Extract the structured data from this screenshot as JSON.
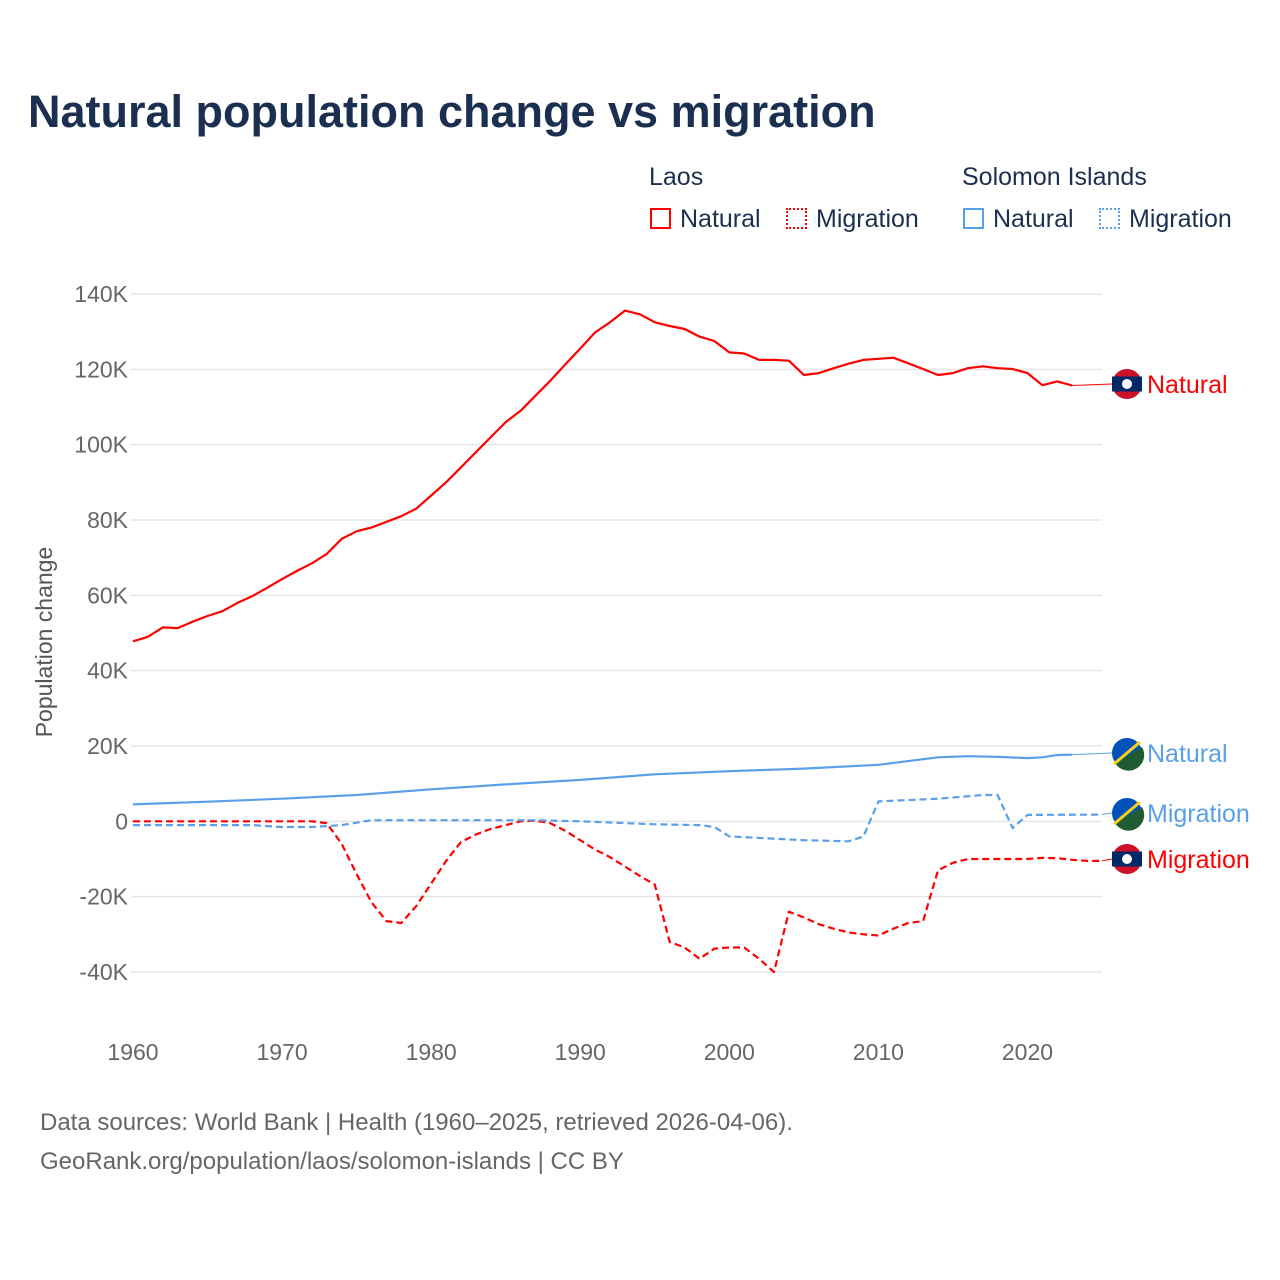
{
  "title": "Natural population change vs migration",
  "legend": {
    "groups": [
      {
        "name": "Laos",
        "color": "#ff0000",
        "items": [
          "Natural",
          "Migration"
        ]
      },
      {
        "name": "Solomon Islands",
        "color": "#5aa0e8",
        "items": [
          "Natural",
          "Migration"
        ]
      }
    ]
  },
  "footer": {
    "line1": "Data sources: World Bank | Health (1960–2025, retrieved 2026-04-06).",
    "line2": "GeoRank.org/population/laos/solomon-islands | CC BY"
  },
  "chart_data": {
    "type": "line",
    "title": "Natural population change vs migration",
    "xlabel": "",
    "ylabel": "Population change",
    "xlim": [
      1960,
      2025
    ],
    "ylim": [
      -40000,
      140000
    ],
    "x_ticks": [
      1960,
      1970,
      1980,
      1990,
      2000,
      2010,
      2020
    ],
    "y_ticks": [
      -40000,
      -20000,
      0,
      20000,
      40000,
      60000,
      80000,
      100000,
      120000,
      140000
    ],
    "y_tick_labels": [
      "-40K",
      "-20K",
      "0",
      "20K",
      "40K",
      "60K",
      "80K",
      "100K",
      "120K",
      "140K"
    ],
    "grid": true,
    "series": [
      {
        "name": "Laos Natural",
        "label": "Natural",
        "country": "Laos",
        "color": "#ff0000",
        "dash": false,
        "x": [
          1960,
          1961,
          1962,
          1963,
          1964,
          1965,
          1966,
          1967,
          1968,
          1969,
          1970,
          1971,
          1972,
          1973,
          1974,
          1975,
          1976,
          1977,
          1978,
          1979,
          1980,
          1981,
          1982,
          1983,
          1984,
          1985,
          1986,
          1987,
          1988,
          1989,
          1990,
          1991,
          1992,
          1993,
          1994,
          1995,
          1996,
          1997,
          1998,
          1999,
          2000,
          2001,
          2002,
          2003,
          2004,
          2005,
          2006,
          2007,
          2008,
          2009,
          2010,
          2011,
          2012,
          2013,
          2014,
          2015,
          2016,
          2017,
          2018,
          2019,
          2020,
          2021,
          2022,
          2023
        ],
        "values": [
          47800,
          49000,
          51500,
          51300,
          53000,
          54500,
          55800,
          58000,
          59800,
          62000,
          64300,
          66500,
          68500,
          71000,
          75000,
          77000,
          78000,
          79500,
          81000,
          83000,
          86500,
          90000,
          94000,
          98000,
          102000,
          106000,
          109000,
          113000,
          117000,
          121300,
          125500,
          129800,
          132500,
          135600,
          134600,
          132500,
          131500,
          130700,
          128700,
          127500,
          124500,
          124200,
          122500,
          122500,
          122300,
          118500,
          119000,
          120300,
          121500,
          122500,
          122800,
          123100,
          121600,
          120100,
          118500,
          119000,
          120300,
          120800,
          120300,
          120100,
          119000,
          115800,
          116800,
          115700
        ]
      },
      {
        "name": "Laos Migration",
        "label": "Migration",
        "country": "Laos",
        "color": "#ff0000",
        "dash": true,
        "x": [
          1960,
          1972,
          1973,
          1974,
          1975,
          1976,
          1977,
          1978,
          1979,
          1980,
          1981,
          1982,
          1983,
          1984,
          1985,
          1986,
          1987,
          1988,
          1989,
          1990,
          1991,
          1992,
          1993,
          1994,
          1995,
          1996,
          1997,
          1998,
          1999,
          2000,
          2001,
          2002,
          2003,
          2004,
          2005,
          2006,
          2007,
          2008,
          2009,
          2010,
          2011,
          2012,
          2013,
          2014,
          2015,
          2016,
          2017,
          2018,
          2019,
          2020,
          2021,
          2022,
          2023,
          2024,
          2025
        ],
        "values": [
          0,
          0,
          -500,
          -6000,
          -14000,
          -21500,
          -26500,
          -27000,
          -22500,
          -16500,
          -10500,
          -5500,
          -3500,
          -2000,
          -1000,
          0,
          200,
          -500,
          -2500,
          -5000,
          -7500,
          -9500,
          -12000,
          -14500,
          -16800,
          -32000,
          -33500,
          -36500,
          -33800,
          -33500,
          -33500,
          -36500,
          -40000,
          -24000,
          -25500,
          -27300,
          -28500,
          -29500,
          -30000,
          -30300,
          -28500,
          -27000,
          -26500,
          -13000,
          -11000,
          -10000,
          -10000,
          -10000,
          -10000,
          -10000,
          -9700,
          -9800,
          -10200,
          -10500,
          -10500
        ]
      },
      {
        "name": "Solomon Islands Natural",
        "label": "Natural",
        "country": "Solomon Islands",
        "color": "#5aa0e8",
        "dash": false,
        "x": [
          1960,
          1965,
          1970,
          1975,
          1980,
          1985,
          1990,
          1995,
          2000,
          2005,
          2010,
          2014,
          2016,
          2018,
          2020,
          2021,
          2022,
          2023
        ],
        "values": [
          4500,
          5200,
          6000,
          7000,
          8500,
          9800,
          11000,
          12500,
          13300,
          14000,
          15000,
          17000,
          17300,
          17100,
          16800,
          17000,
          17600,
          17700
        ]
      },
      {
        "name": "Solomon Islands Migration",
        "label": "Migration",
        "country": "Solomon Islands",
        "color": "#5aa0e8",
        "dash": true,
        "x": [
          1960,
          1968,
          1970,
          1972,
          1974,
          1976,
          1987,
          1990,
          1995,
          1998,
          1999,
          2000,
          2005,
          2008,
          2009,
          2010,
          2014,
          2017,
          2018,
          2019,
          2020,
          2025
        ],
        "values": [
          -1000,
          -1000,
          -1500,
          -1500,
          -1000,
          300,
          300,
          0,
          -800,
          -1000,
          -1500,
          -4000,
          -5000,
          -5300,
          -4000,
          5300,
          6000,
          7000,
          7000,
          -1800,
          1700,
          1800
        ]
      }
    ]
  }
}
